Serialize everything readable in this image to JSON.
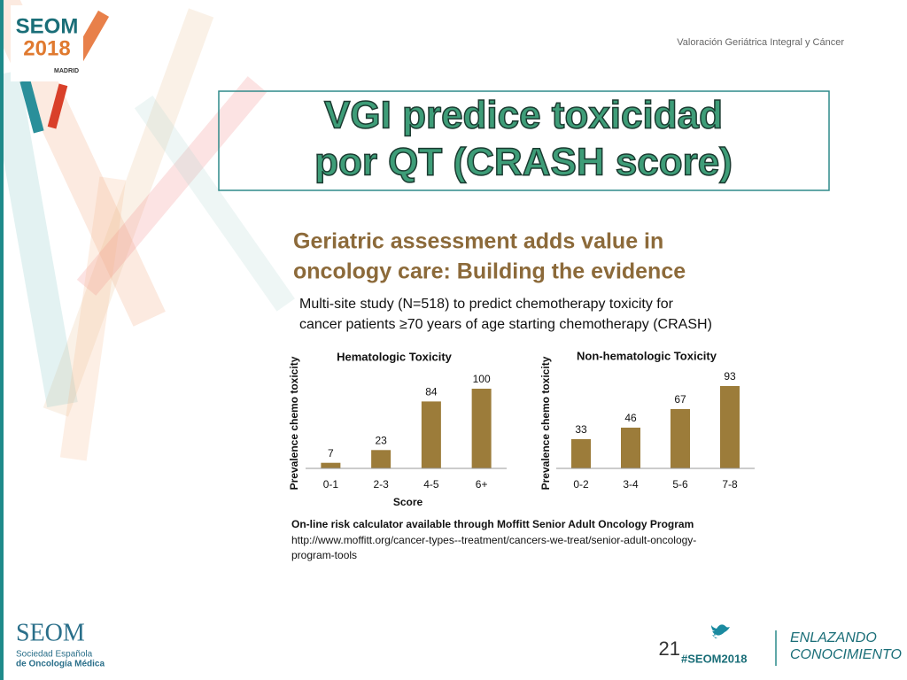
{
  "logo": {
    "name": "SEOM",
    "year": "2018",
    "city": "MADRID"
  },
  "header": "Valoración Geriátrica Integral y Cáncer",
  "title": [
    "VGI predice toxicidad",
    "por QT (CRASH score)"
  ],
  "figure": {
    "heading": [
      "Geriatric assessment adds value in",
      "oncology care: Building the evidence"
    ],
    "subtitle": [
      "Multi-site study (N=518) to predict chemotherapy toxicity for",
      "cancer patients ≥70 years of age starting chemotherapy (CRASH)"
    ],
    "note": "On-line risk calculator available through Moffitt Senior Adult Oncology Program",
    "url": [
      "http://www.moffitt.org/cancer-types--treatment/cancers-we-treat/senior-adult-oncology-",
      "program-tools"
    ]
  },
  "chart_data": [
    {
      "type": "bar",
      "title": "Hematologic Toxicity",
      "y_label": "Prevalence chemo toxicity",
      "x_label": "Score",
      "categories": [
        "0-1",
        "2-3",
        "4-5",
        "6+"
      ],
      "values": [
        7,
        23,
        84,
        100
      ],
      "color": "#9c7c3a",
      "ylim": [
        0,
        120
      ]
    },
    {
      "type": "bar",
      "title": "Non-hematologic Toxicity",
      "y_label": "Prevalence chemo toxicity",
      "categories": [
        "0-2",
        "3-4",
        "5-6",
        "7-8"
      ],
      "values": [
        33,
        46,
        67,
        93
      ],
      "color": "#9c7c3a",
      "ylim": [
        0,
        100
      ]
    }
  ],
  "footer": {
    "org": "SEOM",
    "org_lines": [
      "Sociedad Española",
      "de Oncología Médica"
    ],
    "page": "21",
    "hashtag": "#SEOM2018",
    "slogan": [
      "ENLAZANDO",
      "CONOCIMIENTO"
    ]
  }
}
